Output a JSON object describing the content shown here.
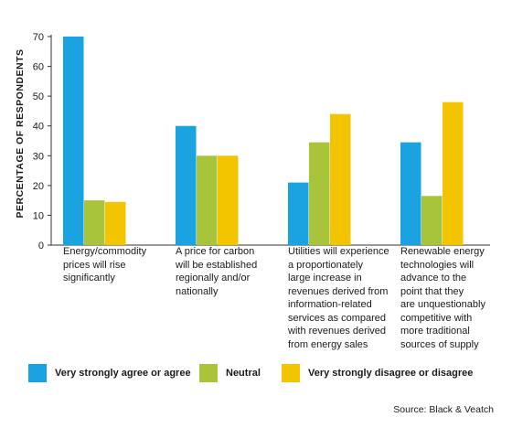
{
  "chart_data": {
    "type": "bar",
    "categories": [
      "Energy/commodity prices will rise significantly",
      "A price for carbon will be established regionally and/or nationally",
      "Utilities will experience a proportionately large increase in revenues derived from information-related services as compared with revenues derived from energy sales",
      "Renewable energy technologies will advance to the point that they are unquestionably competitive with more traditional sources of supply"
    ],
    "category_lines": [
      [
        "Energy/commodity",
        "prices will rise",
        "significantly"
      ],
      [
        "A price for carbon",
        "will be established",
        "regionally and/or",
        "nationally"
      ],
      [
        "Utilities will experience",
        "a proportionately",
        "large increase in",
        "revenues derived from",
        "information-related",
        "services as compared",
        "with revenues derived",
        "from energy sales"
      ],
      [
        "Renewable energy",
        "technologies will",
        "advance to the",
        "point that they",
        "are unquestionably",
        "competitive with",
        "more traditional",
        "sources of supply"
      ]
    ],
    "series": [
      {
        "name": "Very strongly agree or agree",
        "color": "#1aa3e0",
        "values": [
          70,
          40,
          21,
          34.5
        ]
      },
      {
        "name": "Neutral",
        "color": "#a8c43b",
        "values": [
          15,
          30,
          34.5,
          16.5
        ]
      },
      {
        "name": "Very strongly disagree or disagree",
        "color": "#f2c500",
        "values": [
          14.5,
          30,
          44,
          48
        ]
      }
    ],
    "ylabel": "PERCENTAGE OF RESPONDENTS",
    "yticks": [
      0,
      10,
      20,
      30,
      40,
      50,
      60,
      70
    ],
    "ylim": [
      0,
      70
    ],
    "grid": false,
    "legend": "bottom",
    "source": "Source: Black & Veatch"
  }
}
